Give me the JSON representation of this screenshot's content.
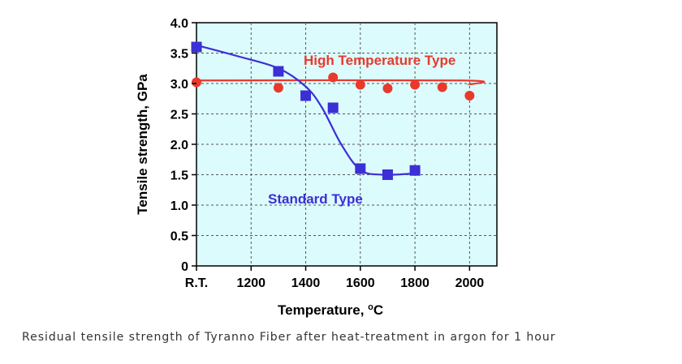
{
  "caption": "Residual tensile strength of Tyranno Fiber after heat-treatment in argon for 1 hour",
  "chart_data": {
    "type": "scatter",
    "xlabel_main": "Temperature, ",
    "xlabel_sup": "o",
    "xlabel_unit": "C",
    "ylabel": "Tensile strength, GPa",
    "xlim": [
      1000,
      2100
    ],
    "ylim": [
      0,
      4.0
    ],
    "x_ticks": [
      {
        "value": 1000,
        "label": "R.T."
      },
      {
        "value": 1200,
        "label": "1200"
      },
      {
        "value": 1400,
        "label": "1400"
      },
      {
        "value": 1600,
        "label": "1600"
      },
      {
        "value": 1800,
        "label": "1800"
      },
      {
        "value": 2000,
        "label": "2000"
      }
    ],
    "y_ticks": [
      {
        "value": 0,
        "label": "0"
      },
      {
        "value": 0.5,
        "label": "0.5"
      },
      {
        "value": 1.0,
        "label": "1.0"
      },
      {
        "value": 1.5,
        "label": "1.5"
      },
      {
        "value": 2.0,
        "label": "2.0"
      },
      {
        "value": 2.5,
        "label": "2.5"
      },
      {
        "value": 3.0,
        "label": "3.0"
      },
      {
        "value": 3.5,
        "label": "3.5"
      },
      {
        "value": 4.0,
        "label": "4.0"
      }
    ],
    "grid": true,
    "background_color": "#dcfbfd",
    "series": [
      {
        "name": "High Temperature Type",
        "color": "#e8392d",
        "marker": "circle",
        "points": [
          [
            1000,
            3.02
          ],
          [
            1300,
            2.93
          ],
          [
            1500,
            3.1
          ],
          [
            1600,
            2.98
          ],
          [
            1700,
            2.92
          ],
          [
            1800,
            2.98
          ],
          [
            1900,
            2.94
          ],
          [
            2000,
            2.8
          ]
        ],
        "curve": [
          [
            1000,
            3.05
          ],
          [
            1975,
            3.05
          ],
          [
            1995,
            2.98
          ]
        ]
      },
      {
        "name": "Standard Type",
        "color": "#3b2fd6",
        "marker": "square",
        "points": [
          [
            1000,
            3.6
          ],
          [
            1300,
            3.2
          ],
          [
            1400,
            2.8
          ],
          [
            1500,
            2.6
          ],
          [
            1600,
            1.6
          ],
          [
            1700,
            1.5
          ],
          [
            1800,
            1.57
          ]
        ],
        "curve": [
          [
            1000,
            3.63
          ],
          [
            1150,
            3.45
          ],
          [
            1300,
            3.25
          ],
          [
            1400,
            2.95
          ],
          [
            1460,
            2.6
          ],
          [
            1530,
            2.0
          ],
          [
            1600,
            1.58
          ],
          [
            1680,
            1.5
          ],
          [
            1800,
            1.52
          ]
        ]
      }
    ]
  }
}
